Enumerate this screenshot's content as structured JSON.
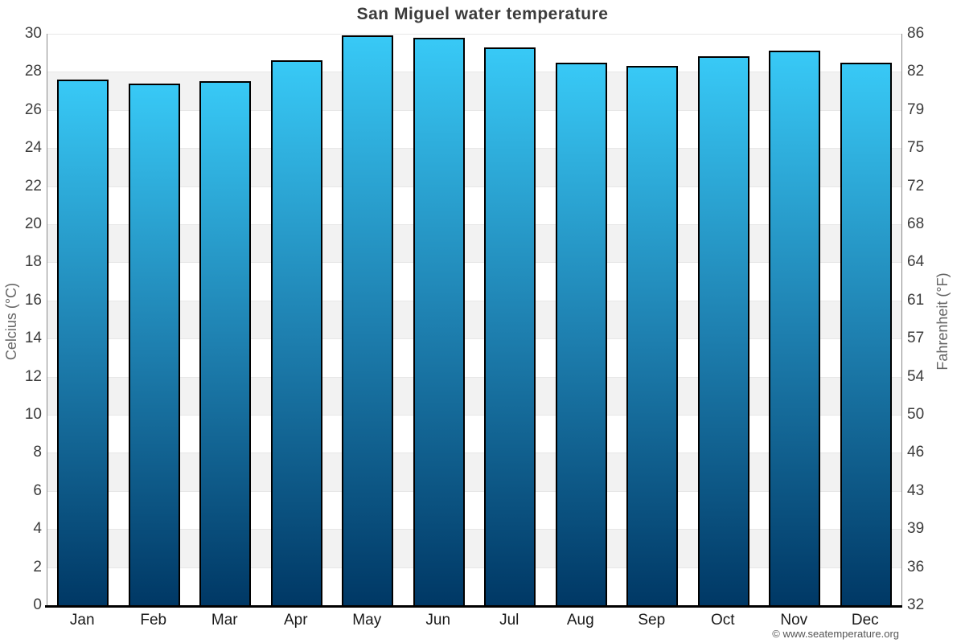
{
  "title": "San Miguel water temperature",
  "watermark": "© www.seatemperature.org",
  "chart_data": {
    "type": "bar",
    "title": "San Miguel water temperature",
    "categories": [
      "Jan",
      "Feb",
      "Mar",
      "Apr",
      "May",
      "Jun",
      "Jul",
      "Aug",
      "Sep",
      "Oct",
      "Nov",
      "Dec"
    ],
    "values": [
      27.6,
      27.4,
      27.5,
      28.6,
      29.9,
      29.8,
      29.3,
      28.5,
      28.3,
      28.8,
      29.1,
      28.5
    ],
    "unit": "°C",
    "ylabel_left": "Celcius (°C)",
    "ylabel_right": "Fahrenheit (°F)",
    "ylim": [
      0,
      30
    ],
    "celsius_ticks": [
      0,
      2,
      4,
      6,
      8,
      10,
      12,
      14,
      16,
      18,
      20,
      22,
      24,
      26,
      28,
      30
    ],
    "fahrenheit_ticks": [
      32,
      36,
      39,
      43,
      46,
      50,
      54,
      57,
      61,
      64,
      68,
      72,
      75,
      79,
      82,
      86
    ],
    "grid": "horizontal bands alternating every 2°C",
    "legend": "none",
    "colors": {
      "bar_gradient_top": "#38c9f6",
      "bar_gradient_mid": "#1e80b0",
      "bar_gradient_bottom": "#003865",
      "bar_border": "#000000",
      "band_white": "#ffffff",
      "band_gray": "#f2f2f2",
      "gridline": "#e7e7e7",
      "axis_line": "#8a8a8a",
      "baseline": "#000000",
      "title_color": "#3b3b3b",
      "tick_label_color": "#3c3c3c",
      "month_label_color": "#1a1a1a",
      "axis_title_color": "#666666",
      "watermark_color": "#555555"
    }
  }
}
